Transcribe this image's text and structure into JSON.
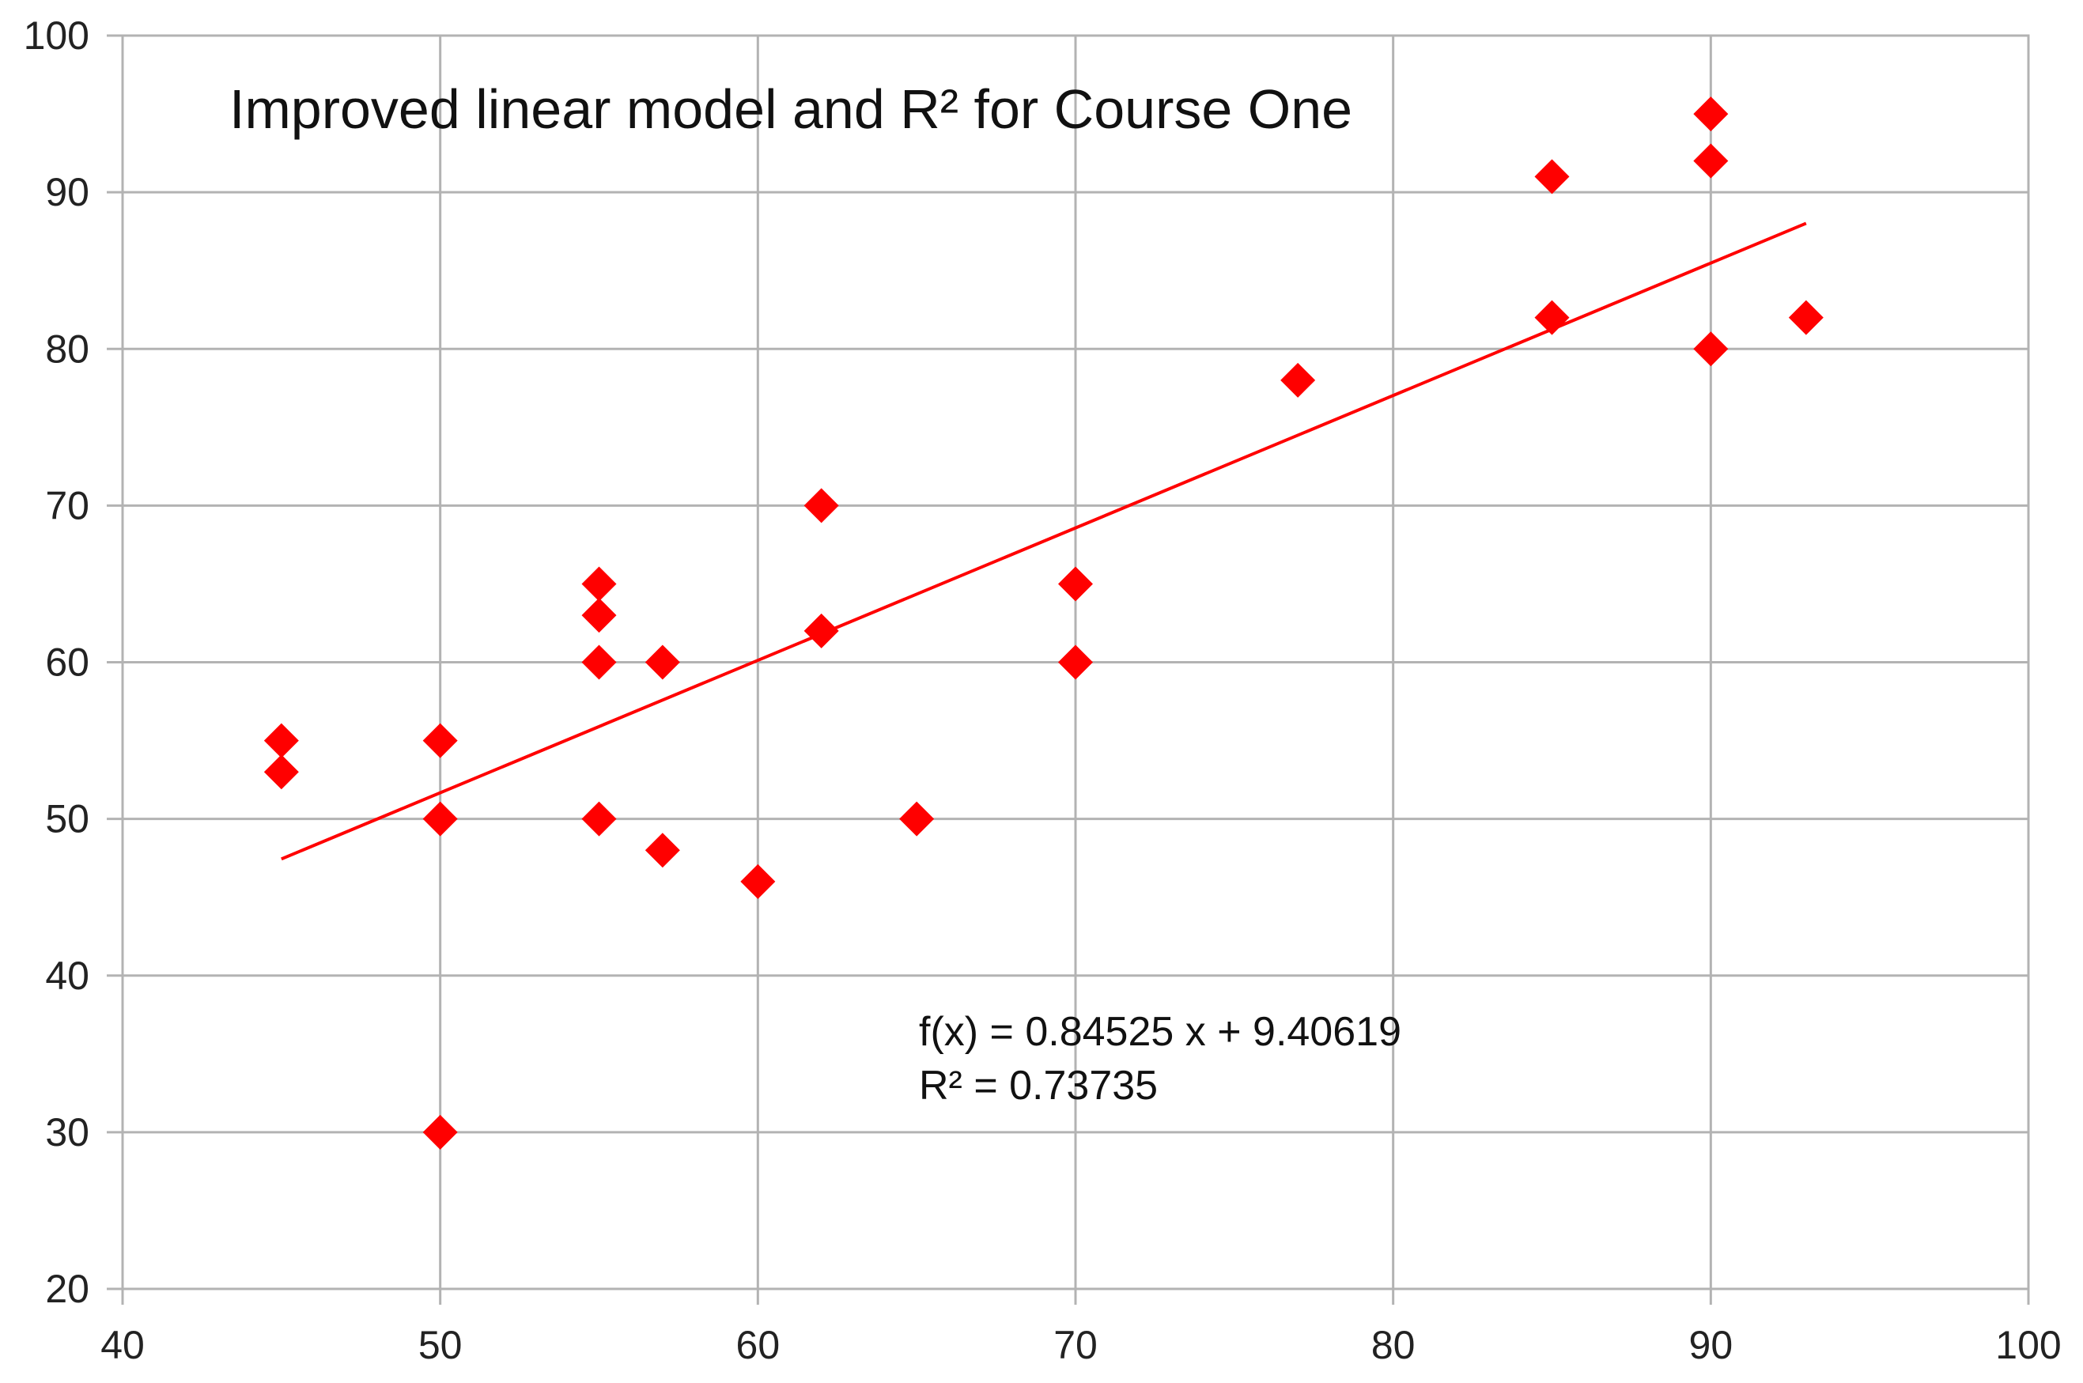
{
  "chart_data": {
    "type": "scatter",
    "title": "Improved linear model and R² for Course One",
    "xlabel": "",
    "ylabel": "",
    "xlim": [
      40,
      100
    ],
    "ylim": [
      20,
      100
    ],
    "x_ticks": [
      40,
      50,
      60,
      70,
      80,
      90,
      100
    ],
    "y_ticks": [
      20,
      30,
      40,
      50,
      60,
      70,
      80,
      90,
      100
    ],
    "grid": true,
    "series": [
      {
        "name": "Course One",
        "color": "#ff0000",
        "marker": "diamond",
        "points": [
          [
            45,
            55
          ],
          [
            45,
            53
          ],
          [
            50,
            55
          ],
          [
            50,
            50
          ],
          [
            50,
            30
          ],
          [
            55,
            65
          ],
          [
            55,
            63
          ],
          [
            55,
            60
          ],
          [
            55,
            50
          ],
          [
            57,
            60
          ],
          [
            57,
            48
          ],
          [
            60,
            46
          ],
          [
            62,
            70
          ],
          [
            62,
            62
          ],
          [
            65,
            50
          ],
          [
            70,
            65
          ],
          [
            70,
            60
          ],
          [
            77,
            78
          ],
          [
            85,
            91
          ],
          [
            85,
            82
          ],
          [
            90,
            95
          ],
          [
            90,
            92
          ],
          [
            90,
            80
          ],
          [
            93,
            82
          ]
        ]
      }
    ],
    "trendline": {
      "type": "linear",
      "slope": 0.84525,
      "intercept": 9.40619,
      "x_range": [
        45,
        93
      ],
      "color": "#ff0000",
      "equation_label": "f(x) = 0.84525 x + 9.40619",
      "r2_label": "R² = 0.73735"
    }
  }
}
